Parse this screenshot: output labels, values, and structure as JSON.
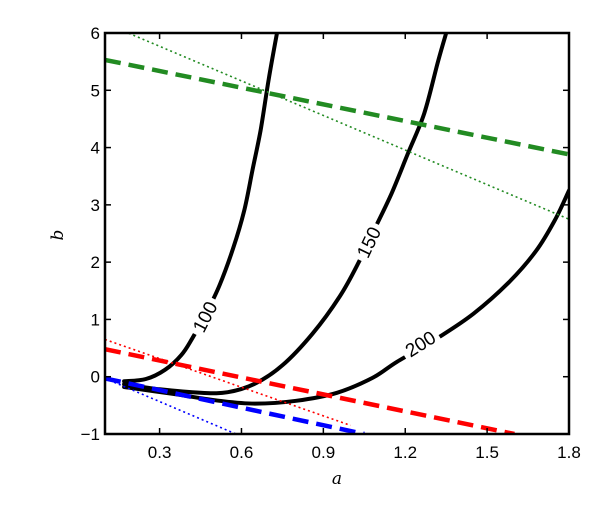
{
  "chart_data": {
    "type": "line",
    "title": "",
    "xlabel": "a",
    "ylabel": "b",
    "xlim": [
      0.1,
      1.8
    ],
    "ylim": [
      -1,
      6
    ],
    "xticks": [
      0.3,
      0.6,
      0.9,
      1.2,
      1.5,
      1.8
    ],
    "xtick_labels": [
      "0.3",
      "0.6",
      "0.9",
      "1.2",
      "1.5",
      "1.8"
    ],
    "yticks": [
      -1,
      0,
      1,
      2,
      3,
      4,
      5,
      6
    ],
    "ytick_labels": [
      "−1",
      "0",
      "1",
      "2",
      "3",
      "4",
      "5",
      "6"
    ],
    "grid": false,
    "legend": "none",
    "series": [
      {
        "name": "100",
        "label_text": "100",
        "style": "contour",
        "color": "#000000",
        "points": [
          [
            0.17,
            -0.08
          ],
          [
            0.25,
            -0.04
          ],
          [
            0.32,
            0.12
          ],
          [
            0.38,
            0.38
          ],
          [
            0.42,
            0.67
          ],
          [
            0.47,
            1.1
          ],
          [
            0.52,
            1.6
          ],
          [
            0.57,
            2.25
          ],
          [
            0.61,
            2.9
          ],
          [
            0.64,
            3.6
          ],
          [
            0.67,
            4.3
          ],
          [
            0.7,
            5.2
          ],
          [
            0.73,
            6.0
          ]
        ],
        "label_at": [
          0.465,
          1.05
        ]
      },
      {
        "name": "150",
        "label_text": "150",
        "style": "contour",
        "color": "#000000",
        "points": [
          [
            0.17,
            -0.13
          ],
          [
            0.3,
            -0.22
          ],
          [
            0.45,
            -0.28
          ],
          [
            0.55,
            -0.27
          ],
          [
            0.65,
            -0.12
          ],
          [
            0.75,
            0.2
          ],
          [
            0.86,
            0.75
          ],
          [
            0.96,
            1.4
          ],
          [
            1.03,
            2.0
          ],
          [
            1.09,
            2.6
          ],
          [
            1.15,
            3.2
          ],
          [
            1.21,
            3.9
          ],
          [
            1.27,
            4.6
          ],
          [
            1.32,
            5.5
          ],
          [
            1.35,
            6.0
          ]
        ],
        "label_at": [
          1.065,
          2.35
        ]
      },
      {
        "name": "200",
        "label_text": "200",
        "style": "contour",
        "color": "#000000",
        "points": [
          [
            0.17,
            -0.18
          ],
          [
            0.35,
            -0.3
          ],
          [
            0.52,
            -0.42
          ],
          [
            0.65,
            -0.47
          ],
          [
            0.8,
            -0.42
          ],
          [
            0.95,
            -0.28
          ],
          [
            1.08,
            -0.02
          ],
          [
            1.17,
            0.26
          ],
          [
            1.32,
            0.68
          ],
          [
            1.45,
            1.1
          ],
          [
            1.58,
            1.65
          ],
          [
            1.68,
            2.2
          ],
          [
            1.75,
            2.75
          ],
          [
            1.8,
            3.25
          ]
        ],
        "label_at": [
          1.255,
          0.58
        ]
      },
      {
        "style": "dashed",
        "color": "#228B22",
        "points": [
          [
            0.1,
            5.53
          ],
          [
            1.8,
            3.88
          ]
        ]
      },
      {
        "style": "dotted",
        "color": "#228B22",
        "points": [
          [
            0.17,
            6.03
          ],
          [
            1.8,
            2.75
          ]
        ]
      },
      {
        "style": "dashed",
        "color": "#ff0000",
        "points": [
          [
            0.1,
            0.48
          ],
          [
            1.6,
            -1.0
          ]
        ]
      },
      {
        "style": "dotted",
        "color": "#ff0000",
        "points": [
          [
            0.1,
            0.65
          ],
          [
            1.0,
            -0.85
          ]
        ]
      },
      {
        "style": "dashed",
        "color": "#0000ff",
        "points": [
          [
            0.1,
            -0.03
          ],
          [
            1.05,
            -1.0
          ]
        ]
      },
      {
        "style": "dotted",
        "color": "#0000ff",
        "points": [
          [
            0.1,
            -0.03
          ],
          [
            0.58,
            -1.0
          ]
        ]
      }
    ]
  }
}
